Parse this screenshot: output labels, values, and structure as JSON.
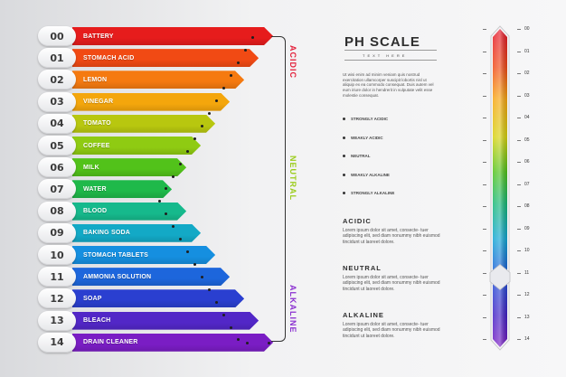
{
  "rows": [
    {
      "num": "00",
      "label": "BATTERY",
      "color": "#e61c1c"
    },
    {
      "num": "01",
      "label": "STOMACH ACID",
      "color": "#f14a14"
    },
    {
      "num": "02",
      "label": "LEMON",
      "color": "#f57a10"
    },
    {
      "num": "03",
      "label": "VINEGAR",
      "color": "#f4a60c"
    },
    {
      "num": "04",
      "label": "TOMATO",
      "color": "#b8c70f"
    },
    {
      "num": "05",
      "label": "COFFEE",
      "color": "#8fcb12"
    },
    {
      "num": "06",
      "label": "MILK",
      "color": "#52c21a"
    },
    {
      "num": "07",
      "label": "WATER",
      "color": "#1fb94a"
    },
    {
      "num": "08",
      "label": "BLOOD",
      "color": "#16b98c"
    },
    {
      "num": "09",
      "label": "BAKING SODA",
      "color": "#13a9c6"
    },
    {
      "num": "10",
      "label": "STOMACH TABLETS",
      "color": "#158fe0"
    },
    {
      "num": "11",
      "label": "AMMONIA SOLUTION",
      "color": "#1d66dc"
    },
    {
      "num": "12",
      "label": "SOAP",
      "color": "#2a3fd0"
    },
    {
      "num": "13",
      "label": "BLEACH",
      "color": "#5227c7"
    },
    {
      "num": "14",
      "label": "DRAIN CLEANER",
      "color": "#7a1dc4"
    }
  ],
  "categories": {
    "acidic": {
      "label": "ACIDIC",
      "color": "#e3203a"
    },
    "neutral": {
      "label": "NEUTRAL",
      "color": "#9bcc1b"
    },
    "alkaline": {
      "label": "ALKALINE",
      "color": "#8a2fd0"
    }
  },
  "title": "PH SCALE",
  "subtitle": "TEXT HERE",
  "intro_text": "Ut wisi enim ad minim veniam quis nostrud exercitation ullamcorper suscipit lobortis nisl ut aliquip ex ea commodo consequat. Duis autem vel eum iriure dolor in hendrerit in vulputate velit esse molestie consequat.",
  "legend": [
    "STRONGLY ACIDIC",
    "WEAKLY ACIDIC",
    "NEUTRAL",
    "WEAKLY ALKALINE",
    "STRONGLY ALKALINE"
  ],
  "sections": [
    {
      "heading": "ACIDIC",
      "text": "Lorem ipsum dolor sit amet, consecte- tuer adipiscing elit, sed diam nonummy nibh euismod tincidunt ut laoreet dolore."
    },
    {
      "heading": "NEUTRAL",
      "text": "Lorem ipsum dolor sit amet, consecte- tuer adipiscing elit, sed diam nonummy nibh euismod tincidunt ut laoreet dolore."
    },
    {
      "heading": "ALKALINE",
      "text": "Lorem ipsum dolor sit amet, consecte- tuer adipiscing elit, sed diam nonummy nibh euismod tincidunt ut laoreet dolore."
    }
  ],
  "scale_numbers": [
    "00",
    "01",
    "02",
    "03",
    "04",
    "05",
    "06",
    "07",
    "08",
    "09",
    "10",
    "11",
    "12",
    "13",
    "14"
  ],
  "scale_indicator_value": 11
}
